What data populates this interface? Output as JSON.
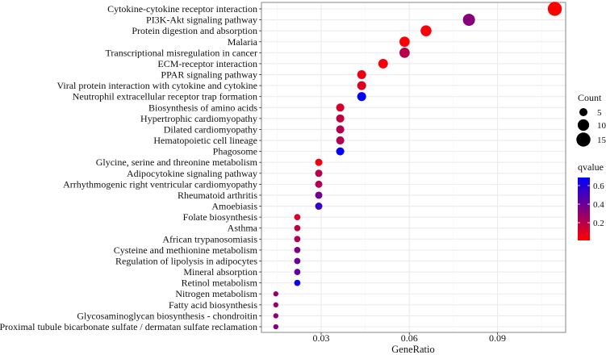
{
  "chart_data": {
    "type": "scatter",
    "title": "",
    "xlabel": "GeneRatio",
    "ylabel": "",
    "xlim": [
      0.0097,
      0.1132
    ],
    "xticks": [
      "0.03",
      "0.06",
      "0.09"
    ],
    "xtick_values": [
      0.03,
      0.06,
      0.09
    ],
    "grid": true,
    "legend_position": "right",
    "size_legend": {
      "title": "Count",
      "values": [
        5,
        10,
        15
      ],
      "labels": [
        "5",
        "10",
        "15"
      ]
    },
    "color_legend": {
      "title": "qvalue",
      "range": [
        0.009,
        0.687
      ],
      "ticks": [
        0.2,
        0.4,
        0.6
      ],
      "labels": [
        "0.2",
        "0.4",
        "0.6"
      ],
      "low_color": "#FF0000",
      "high_color": "#0000FF"
    },
    "points": [
      {
        "term": "Cytokine-cytokine receptor interaction",
        "gene_ratio": 0.1095,
        "count": 15,
        "qvalue": 0.01
      },
      {
        "term": "PI3K-Akt signaling pathway",
        "gene_ratio": 0.0803,
        "count": 11,
        "qvalue": 0.33
      },
      {
        "term": "Protein digestion and absorption",
        "gene_ratio": 0.0657,
        "count": 9,
        "qvalue": 0.02
      },
      {
        "term": "Malaria",
        "gene_ratio": 0.0584,
        "count": 8,
        "qvalue": 0.02
      },
      {
        "term": "Transcriptional misregulation in cancer",
        "gene_ratio": 0.0584,
        "count": 8,
        "qvalue": 0.2
      },
      {
        "term": "ECM-receptor interaction",
        "gene_ratio": 0.0511,
        "count": 7,
        "qvalue": 0.03
      },
      {
        "term": "PPAR signaling pathway",
        "gene_ratio": 0.0438,
        "count": 6,
        "qvalue": 0.05
      },
      {
        "term": "Viral protein interaction with cytokine and cytokine",
        "gene_ratio": 0.0438,
        "count": 6,
        "qvalue": 0.1
      },
      {
        "term": "Neutrophil extracellular receptor trap formation",
        "gene_ratio": 0.0438,
        "count": 6,
        "qvalue": 0.68
      },
      {
        "term": "Biosynthesis of amino acids",
        "gene_ratio": 0.0365,
        "count": 5,
        "qvalue": 0.12
      },
      {
        "term": "Hypertrophic cardiomyopathy",
        "gene_ratio": 0.0365,
        "count": 5,
        "qvalue": 0.18
      },
      {
        "term": "Dilated cardiomyopathy",
        "gene_ratio": 0.0365,
        "count": 5,
        "qvalue": 0.22
      },
      {
        "term": "Hematopoietic cell lineage",
        "gene_ratio": 0.0365,
        "count": 5,
        "qvalue": 0.22
      },
      {
        "term": "Phagosome",
        "gene_ratio": 0.0365,
        "count": 5,
        "qvalue": 0.68
      },
      {
        "term": "Glycine, serine and threonine metabolism",
        "gene_ratio": 0.0292,
        "count": 4,
        "qvalue": 0.05
      },
      {
        "term": "Adipocytokine signaling pathway",
        "gene_ratio": 0.0292,
        "count": 4,
        "qvalue": 0.2
      },
      {
        "term": "Arrhythmogenic right ventricular cardiomyopathy",
        "gene_ratio": 0.0292,
        "count": 4,
        "qvalue": 0.22
      },
      {
        "term": "Rheumatoid arthritis",
        "gene_ratio": 0.0292,
        "count": 4,
        "qvalue": 0.38
      },
      {
        "term": "Amoebiasis",
        "gene_ratio": 0.0292,
        "count": 4,
        "qvalue": 0.55
      },
      {
        "term": "Folate biosynthesis",
        "gene_ratio": 0.0219,
        "count": 3,
        "qvalue": 0.1
      },
      {
        "term": "Asthma",
        "gene_ratio": 0.0219,
        "count": 3,
        "qvalue": 0.18
      },
      {
        "term": "African trypanosomiasis",
        "gene_ratio": 0.0219,
        "count": 3,
        "qvalue": 0.22
      },
      {
        "term": "Cysteine and methionine metabolism",
        "gene_ratio": 0.0219,
        "count": 3,
        "qvalue": 0.35
      },
      {
        "term": "Regulation of lipolysis in adipocytes",
        "gene_ratio": 0.0219,
        "count": 3,
        "qvalue": 0.4
      },
      {
        "term": "Mineral absorption",
        "gene_ratio": 0.0219,
        "count": 3,
        "qvalue": 0.42
      },
      {
        "term": "Retinol metabolism",
        "gene_ratio": 0.0219,
        "count": 3,
        "qvalue": 0.65
      },
      {
        "term": "Nitrogen metabolism",
        "gene_ratio": 0.0146,
        "count": 2,
        "qvalue": 0.28
      },
      {
        "term": "Fatty acid biosynthesis",
        "gene_ratio": 0.0146,
        "count": 2,
        "qvalue": 0.28
      },
      {
        "term": "Glycosaminoglycan biosynthesis - chondroitin",
        "gene_ratio": 0.0146,
        "count": 2,
        "qvalue": 0.3
      },
      {
        "term": "Proximal tubule bicarbonate sulfate / dermatan sulfate reclamation",
        "gene_ratio": 0.0146,
        "count": 2,
        "qvalue": 0.33
      }
    ]
  }
}
